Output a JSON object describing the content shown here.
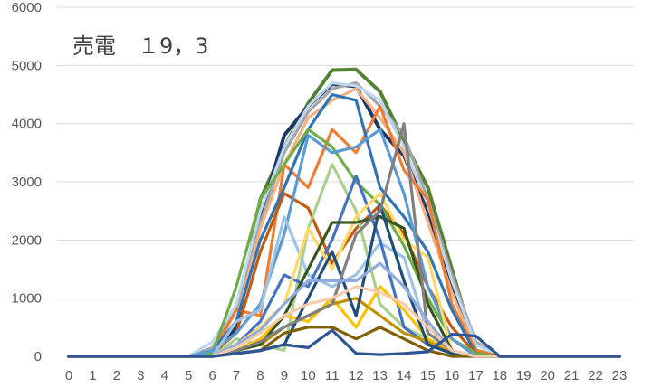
{
  "chart_data": {
    "type": "line",
    "title": "売電　１9，3",
    "xlabel": "",
    "ylabel": "",
    "x": [
      0,
      1,
      2,
      3,
      4,
      5,
      6,
      7,
      8,
      9,
      10,
      11,
      12,
      13,
      14,
      15,
      16,
      17,
      18,
      19,
      20,
      21,
      22,
      23
    ],
    "ylim": [
      0,
      6000
    ],
    "yticks": [
      0,
      1000,
      2000,
      3000,
      4000,
      5000,
      6000
    ],
    "grid": true,
    "legend": "none",
    "series": [
      {
        "color": "#548235",
        "values": [
          0,
          0,
          0,
          0,
          0,
          0,
          0,
          500,
          2700,
          3600,
          4350,
          4920,
          4930,
          4550,
          3700,
          2900,
          1500,
          100,
          0,
          0,
          0,
          0,
          0,
          0
        ]
      },
      {
        "color": "#203864",
        "values": [
          0,
          0,
          0,
          0,
          0,
          0,
          0,
          500,
          2400,
          3800,
          4300,
          4680,
          4640,
          3900,
          3450,
          2500,
          1200,
          50,
          0,
          0,
          0,
          0,
          0,
          0
        ]
      },
      {
        "color": "#A5A5A5",
        "values": [
          0,
          0,
          0,
          0,
          0,
          0,
          150,
          800,
          2300,
          3500,
          4200,
          4600,
          4700,
          4300,
          3800,
          2700,
          1400,
          250,
          0,
          0,
          0,
          0,
          0,
          0
        ]
      },
      {
        "color": "#BDD7EE",
        "values": [
          0,
          0,
          0,
          0,
          0,
          0,
          250,
          900,
          2500,
          3600,
          4300,
          4700,
          4650,
          4400,
          3600,
          2600,
          1300,
          200,
          0,
          0,
          0,
          0,
          0,
          0
        ]
      },
      {
        "color": "#F4B183",
        "values": [
          0,
          0,
          0,
          0,
          0,
          0,
          100,
          600,
          2200,
          3300,
          4100,
          4400,
          4600,
          4100,
          3500,
          2300,
          1100,
          100,
          0,
          0,
          0,
          0,
          0,
          0
        ]
      },
      {
        "color": "#ED7D31",
        "values": [
          0,
          0,
          0,
          0,
          0,
          0,
          50,
          800,
          700,
          3300,
          2900,
          3900,
          3500,
          4300,
          3200,
          2700,
          900,
          100,
          0,
          0,
          0,
          0,
          0,
          0
        ]
      },
      {
        "color": "#2E75B6",
        "values": [
          0,
          0,
          0,
          0,
          0,
          0,
          100,
          600,
          2000,
          2900,
          3900,
          4500,
          4400,
          2900,
          2400,
          1800,
          800,
          50,
          0,
          0,
          0,
          0,
          0,
          0
        ]
      },
      {
        "color": "#C55A11",
        "values": [
          0,
          0,
          0,
          0,
          0,
          0,
          50,
          400,
          1800,
          2800,
          2550,
          1600,
          2200,
          2600,
          2100,
          1200,
          500,
          50,
          0,
          0,
          0,
          0,
          0,
          0
        ]
      },
      {
        "color": "#70AD47",
        "values": [
          0,
          0,
          0,
          0,
          0,
          0,
          50,
          1200,
          2700,
          3300,
          3900,
          3600,
          3000,
          2600,
          1900,
          1000,
          300,
          50,
          0,
          0,
          0,
          0,
          0,
          0
        ]
      },
      {
        "color": "#A9D18E",
        "values": [
          0,
          0,
          0,
          0,
          0,
          0,
          0,
          300,
          200,
          100,
          2200,
          3300,
          2500,
          900,
          500,
          300,
          100,
          0,
          0,
          0,
          0,
          0,
          0,
          0
        ]
      },
      {
        "color": "#5B9BD5",
        "values": [
          0,
          0,
          0,
          0,
          0,
          0,
          100,
          400,
          900,
          2100,
          3800,
          3500,
          3600,
          3900,
          2800,
          1200,
          300,
          0,
          0,
          0,
          0,
          0,
          0,
          0
        ]
      },
      {
        "color": "#9DC3E6",
        "values": [
          0,
          0,
          0,
          0,
          0,
          0,
          0,
          600,
          800,
          2400,
          1400,
          1200,
          1400,
          1950,
          1700,
          400,
          100,
          0,
          0,
          0,
          0,
          0,
          0,
          0
        ]
      },
      {
        "color": "#4472C4",
        "values": [
          0,
          0,
          0,
          0,
          0,
          0,
          0,
          200,
          600,
          1400,
          1200,
          2000,
          3100,
          2000,
          500,
          200,
          50,
          0,
          0,
          0,
          0,
          0,
          0,
          0
        ]
      },
      {
        "color": "#FFD966",
        "values": [
          0,
          0,
          0,
          0,
          0,
          0,
          0,
          200,
          500,
          900,
          2200,
          1500,
          2400,
          2800,
          2000,
          1700,
          100,
          0,
          0,
          0,
          0,
          0,
          0,
          0
        ]
      },
      {
        "color": "#FFC000",
        "values": [
          0,
          0,
          0,
          0,
          0,
          0,
          0,
          100,
          300,
          700,
          600,
          1000,
          500,
          1200,
          800,
          300,
          50,
          0,
          0,
          0,
          0,
          0,
          0,
          0
        ]
      },
      {
        "color": "#BF9000",
        "values": [
          0,
          0,
          0,
          0,
          0,
          0,
          0,
          100,
          200,
          500,
          700,
          900,
          1000,
          700,
          400,
          250,
          50,
          0,
          0,
          0,
          0,
          0,
          0,
          0
        ]
      },
      {
        "color": "#375623",
        "values": [
          0,
          0,
          0,
          0,
          0,
          0,
          0,
          100,
          200,
          700,
          1500,
          2300,
          2300,
          2400,
          2200,
          900,
          100,
          0,
          0,
          0,
          0,
          0,
          0,
          0
        ]
      },
      {
        "color": "#1F4E79",
        "values": [
          0,
          0,
          0,
          0,
          0,
          0,
          0,
          50,
          100,
          200,
          1000,
          1800,
          700,
          2600,
          1300,
          200,
          50,
          0,
          0,
          0,
          0,
          0,
          0,
          0
        ]
      },
      {
        "color": "#7F6000",
        "values": [
          0,
          0,
          0,
          0,
          0,
          0,
          0,
          50,
          100,
          400,
          500,
          500,
          300,
          500,
          300,
          100,
          0,
          0,
          0,
          0,
          0,
          0,
          0,
          0
        ]
      },
      {
        "color": "#808080",
        "values": [
          0,
          0,
          0,
          0,
          0,
          0,
          0,
          100,
          250,
          500,
          700,
          900,
          2100,
          2500,
          4000,
          400,
          100,
          0,
          0,
          0,
          0,
          0,
          0,
          0
        ]
      },
      {
        "color": "#8FAADC",
        "values": [
          0,
          0,
          0,
          0,
          0,
          0,
          0,
          200,
          450,
          900,
          1300,
          1300,
          1300,
          1600,
          1200,
          600,
          100,
          0,
          0,
          0,
          0,
          0,
          0,
          0
        ]
      },
      {
        "color": "#F8CBAD",
        "values": [
          0,
          0,
          0,
          0,
          0,
          0,
          0,
          150,
          400,
          700,
          900,
          1000,
          1200,
          1100,
          900,
          500,
          100,
          0,
          0,
          0,
          0,
          0,
          0,
          0
        ]
      },
      {
        "color": "#2F5597",
        "values": [
          0,
          0,
          0,
          0,
          0,
          0,
          0,
          50,
          100,
          200,
          150,
          450,
          50,
          30,
          50,
          80,
          380,
          350,
          0,
          0,
          0,
          0,
          0,
          0
        ]
      }
    ]
  }
}
